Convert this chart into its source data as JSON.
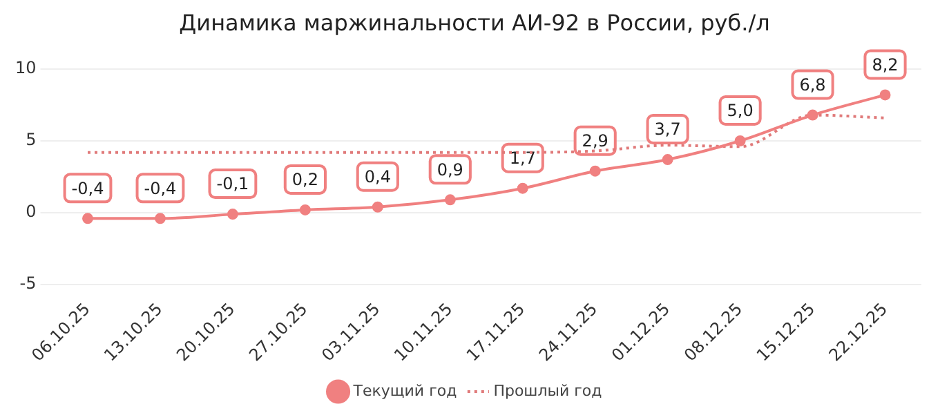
{
  "chart_data": {
    "type": "line",
    "title": "Динамика маржинальности АИ-92 в России, руб./л",
    "categories": [
      "06.10.25",
      "13.10.25",
      "20.10.25",
      "27.10.25",
      "03.11.25",
      "10.11.25",
      "17.11.25",
      "24.11.25",
      "01.12.25",
      "08.12.25",
      "15.12.25",
      "22.12.25"
    ],
    "series": [
      {
        "name": "Текущий год",
        "color": "#f08080",
        "marker": "circle",
        "line_style": "solid",
        "values": [
          -0.4,
          -0.4,
          -0.1,
          0.2,
          0.4,
          0.9,
          1.7,
          2.9,
          3.7,
          5.0,
          6.8,
          8.2
        ],
        "value_labels": [
          "-0,4",
          "-0,4",
          "-0,1",
          "0,2",
          "0,4",
          "0,9",
          "1,7",
          "2,9",
          "3,7",
          "5,0",
          "6,8",
          "8,2"
        ]
      },
      {
        "name": "Прошлый год",
        "color": "#e07a7a",
        "marker": "none",
        "line_style": "dotted",
        "values": [
          4.2,
          4.2,
          4.2,
          4.2,
          4.2,
          4.2,
          4.2,
          4.3,
          4.7,
          4.6,
          6.8,
          6.6
        ]
      }
    ],
    "ylim": [
      -5,
      10
    ],
    "yticks": [
      -5,
      0,
      5,
      10
    ],
    "grid": "y",
    "legend": "bottom"
  }
}
